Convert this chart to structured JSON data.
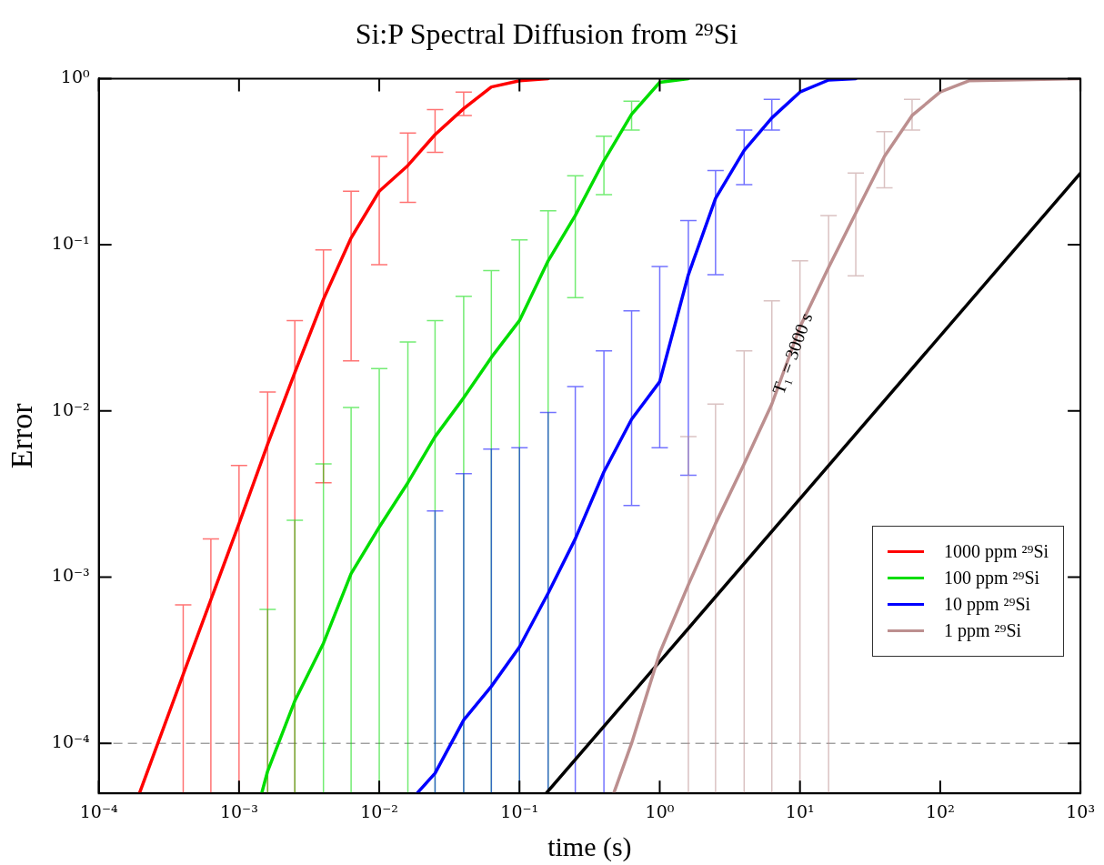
{
  "chart_data": {
    "type": "line",
    "title": "Si:P Spectral Diffusion from ²⁹Si",
    "xlabel": "time (s)",
    "ylabel": "Error",
    "log": "xy",
    "legend": "bottom right",
    "line_style": "solid",
    "xlim": [
      0.0001,
      1000
    ],
    "ylim": [
      5e-05,
      1
    ],
    "xticks": [
      {
        "value": 0.0001,
        "label": "10⁻⁴"
      },
      {
        "value": 0.001,
        "label": "10⁻³"
      },
      {
        "value": 0.01,
        "label": "10⁻²"
      },
      {
        "value": 0.1,
        "label": "10⁻¹"
      },
      {
        "value": 1,
        "label": "10⁰"
      },
      {
        "value": 10,
        "label": "10¹"
      },
      {
        "value": 100,
        "label": "10²"
      },
      {
        "value": 1000,
        "label": "10³"
      }
    ],
    "yticks": [
      {
        "value": 0.0001,
        "label": "10⁻⁴"
      },
      {
        "value": 0.001,
        "label": "10⁻³"
      },
      {
        "value": 0.01,
        "label": "10⁻²"
      },
      {
        "value": 0.1,
        "label": "10⁻¹"
      },
      {
        "value": 1,
        "label": "10⁰"
      }
    ],
    "ref_lines": [
      {
        "axis": "y",
        "value": 0.0001,
        "color": "#777777",
        "line_style": "dashed"
      }
    ],
    "annotations": [
      {
        "text": "T₁ = 3000 s",
        "x": 9,
        "y": 0.022
      }
    ],
    "series": [
      {
        "name": "1000 ppm ²⁹Si",
        "color": "#ff0000",
        "x": [
          0.000195,
          0.0004,
          0.00063,
          0.001,
          0.0016,
          0.0025,
          0.004,
          0.0063,
          0.01,
          0.016,
          0.025,
          0.04,
          0.063,
          0.1,
          0.16
        ],
        "values": [
          5e-05,
          0.00026,
          0.00073,
          0.0021,
          0.0063,
          0.017,
          0.047,
          0.11,
          0.21,
          0.3,
          0.46,
          0.66,
          0.89,
          0.97,
          1
        ],
        "errors": [
          null,
          [
            5e-05,
            0.00068
          ],
          [
            5e-05,
            0.0017
          ],
          [
            5e-05,
            0.0047
          ],
          [
            5e-05,
            0.013
          ],
          [
            5e-05,
            0.035
          ],
          [
            0.0037,
            0.093
          ],
          [
            0.02,
            0.21
          ],
          [
            0.076,
            0.34
          ],
          [
            0.18,
            0.47
          ],
          [
            0.36,
            0.65
          ],
          [
            0.6,
            0.83
          ],
          null,
          null,
          null
        ]
      },
      {
        "name": "100 ppm ²⁹Si",
        "color": "#00dd00",
        "x": [
          0.00145,
          0.0016,
          0.0025,
          0.004,
          0.0063,
          0.01,
          0.016,
          0.025,
          0.04,
          0.063,
          0.1,
          0.16,
          0.25,
          0.4,
          0.63,
          1,
          1.6
        ],
        "values": [
          5e-05,
          6.8e-05,
          0.00018,
          0.0004,
          0.00105,
          0.002,
          0.0037,
          0.007,
          0.012,
          0.021,
          0.035,
          0.08,
          0.15,
          0.32,
          0.61,
          0.95,
          1
        ],
        "errors": [
          null,
          [
            5e-05,
            0.00064
          ],
          [
            5e-05,
            0.0022
          ],
          [
            5e-05,
            0.0048
          ],
          [
            5e-05,
            0.0105
          ],
          [
            5e-05,
            0.018
          ],
          [
            5e-05,
            0.026
          ],
          [
            5e-05,
            0.035
          ],
          [
            5e-05,
            0.049
          ],
          [
            5e-05,
            0.07
          ],
          [
            5e-05,
            0.107
          ],
          [
            5e-05,
            0.16
          ],
          [
            0.048,
            0.26
          ],
          [
            0.2,
            0.45
          ],
          [
            0.49,
            0.73
          ],
          null,
          null
        ]
      },
      {
        "name": "10 ppm ²⁹Si",
        "color": "#0000ff",
        "x": [
          0.0186,
          0.025,
          0.04,
          0.063,
          0.1,
          0.16,
          0.25,
          0.4,
          0.63,
          1,
          1.6,
          2.5,
          4,
          6.3,
          10,
          16,
          25
        ],
        "values": [
          5e-05,
          6.6e-05,
          0.000138,
          0.00022,
          0.00038,
          0.0008,
          0.0017,
          0.0043,
          0.0089,
          0.015,
          0.066,
          0.19,
          0.37,
          0.58,
          0.83,
          0.98,
          1
        ],
        "errors": [
          null,
          [
            5e-05,
            0.0025
          ],
          [
            5e-05,
            0.0042
          ],
          [
            5e-05,
            0.0059
          ],
          [
            5e-05,
            0.006
          ],
          [
            5e-05,
            0.0098
          ],
          [
            5e-05,
            0.014
          ],
          [
            5e-05,
            0.023
          ],
          [
            0.0027,
            0.04
          ],
          [
            0.006,
            0.074
          ],
          [
            0.0041,
            0.14
          ],
          [
            0.066,
            0.28
          ],
          [
            0.23,
            0.49
          ],
          [
            0.49,
            0.75
          ],
          null,
          null,
          null
        ]
      },
      {
        "name": "1 ppm ²⁹Si",
        "color": "#bc8f8f",
        "x": [
          0.47,
          0.63,
          1,
          1.6,
          2.5,
          4,
          6.3,
          10,
          16,
          25,
          40,
          63,
          100,
          160,
          1000
        ],
        "values": [
          5e-05,
          0.0001,
          0.00035,
          0.0009,
          0.0021,
          0.0048,
          0.011,
          0.032,
          0.073,
          0.155,
          0.34,
          0.6,
          0.83,
          0.97,
          1
        ],
        "errors": [
          null,
          null,
          null,
          [
            5e-05,
            0.007
          ],
          [
            5e-05,
            0.011
          ],
          [
            5e-05,
            0.023
          ],
          [
            5e-05,
            0.046
          ],
          [
            5e-05,
            0.08
          ],
          [
            5e-05,
            0.15
          ],
          [
            0.065,
            0.27
          ],
          [
            0.22,
            0.48
          ],
          [
            0.49,
            0.75
          ],
          null,
          null,
          null
        ]
      },
      {
        "color": "#000000",
        "x": [
          0.155,
          1,
          1000
        ],
        "values": [
          5e-05,
          0.00031,
          0.27
        ]
      }
    ]
  }
}
